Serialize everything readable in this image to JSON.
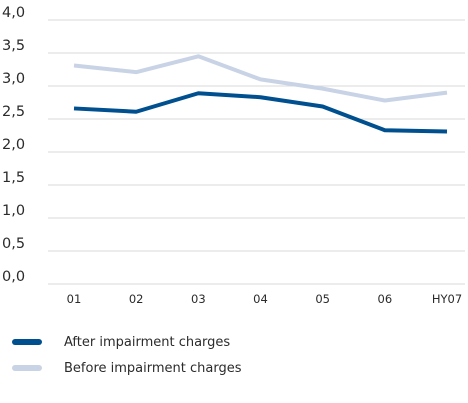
{
  "chart_data": {
    "type": "line",
    "categories": [
      "01",
      "02",
      "03",
      "04",
      "05",
      "06",
      "HY07"
    ],
    "y_ticks": [
      "0,0",
      "0,5",
      "1,0",
      "1,5",
      "2,0",
      "2,5",
      "3,0",
      "3,5",
      "4,0"
    ],
    "ylim": [
      0,
      4
    ],
    "grid": true,
    "legend_position": "bottom-left",
    "series": [
      {
        "name": "After impairment charges",
        "color": "#00508f",
        "values": [
          2.66,
          2.61,
          2.89,
          2.83,
          2.69,
          2.33,
          2.31
        ]
      },
      {
        "name": "Before impairment charges",
        "color": "#c9d3e6",
        "values": [
          3.31,
          3.21,
          3.45,
          3.1,
          2.96,
          2.78,
          2.9
        ]
      }
    ]
  }
}
